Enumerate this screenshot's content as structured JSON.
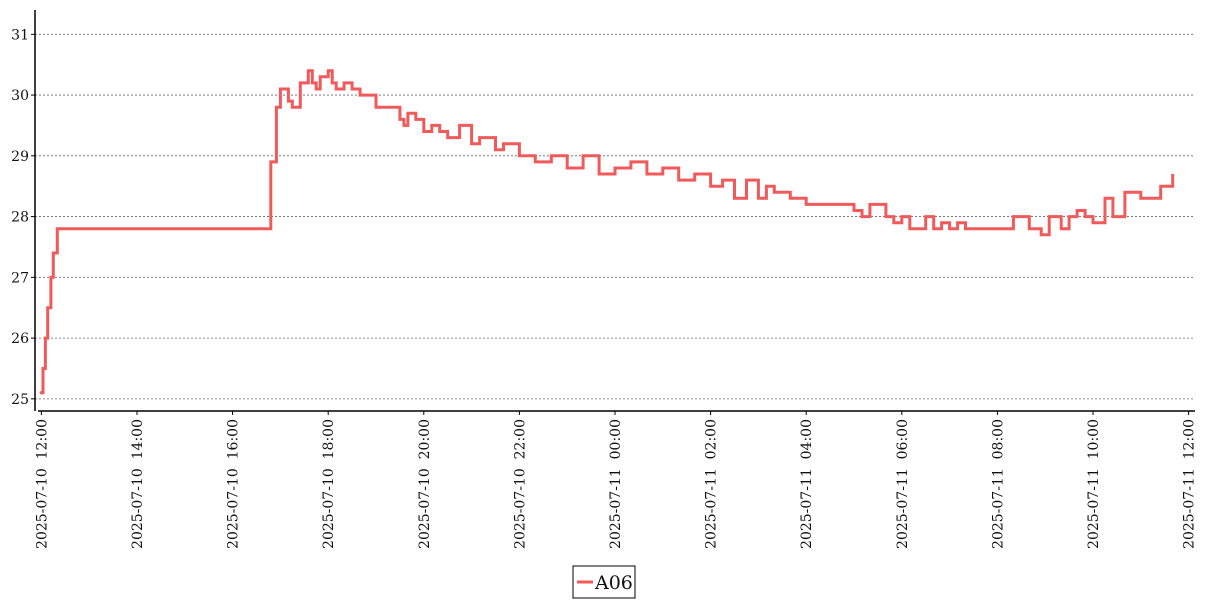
{
  "chart_data": {
    "type": "line",
    "title": "",
    "xlabel": "",
    "ylabel": "",
    "grid": "horizontal dotted",
    "legend_placement": "bottom-center",
    "ylim": [
      24.8,
      31.4
    ],
    "xlim": [
      "2025-07-10 11:52",
      "2025-07-11 12:08"
    ],
    "y_ticks": [
      "25",
      "26",
      "27",
      "28",
      "29",
      "30",
      "31"
    ],
    "x_ticks": [
      "2025-07-10  12:00",
      "2025-07-10  14:00",
      "2025-07-10  16:00",
      "2025-07-10  18:00",
      "2025-07-10  20:00",
      "2025-07-10  22:00",
      "2025-07-11  00:00",
      "2025-07-11  02:00",
      "2025-07-11  04:00",
      "2025-07-11  06:00",
      "2025-07-11  08:00",
      "2025-07-11  10:00",
      "2025-07-11  12:00"
    ],
    "series": [
      {
        "name": "A06",
        "color": "#f05a5a",
        "x": [
          "2025-07-10 11:58",
          "2025-07-10 12:02",
          "2025-07-10 12:05",
          "2025-07-10 12:08",
          "2025-07-10 12:12",
          "2025-07-10 12:15",
          "2025-07-10 12:20",
          "2025-07-10 12:25",
          "2025-07-10 12:30",
          "2025-07-10 16:45",
          "2025-07-10 16:48",
          "2025-07-10 16:55",
          "2025-07-10 17:00",
          "2025-07-10 17:05",
          "2025-07-10 17:10",
          "2025-07-10 17:15",
          "2025-07-10 17:25",
          "2025-07-10 17:35",
          "2025-07-10 17:40",
          "2025-07-10 17:45",
          "2025-07-10 17:50",
          "2025-07-10 18:00",
          "2025-07-10 18:05",
          "2025-07-10 18:10",
          "2025-07-10 18:20",
          "2025-07-10 18:30",
          "2025-07-10 18:40",
          "2025-07-10 19:00",
          "2025-07-10 19:30",
          "2025-07-10 19:35",
          "2025-07-10 19:40",
          "2025-07-10 19:50",
          "2025-07-10 20:00",
          "2025-07-10 20:10",
          "2025-07-10 20:20",
          "2025-07-10 20:30",
          "2025-07-10 20:45",
          "2025-07-10 21:00",
          "2025-07-10 21:10",
          "2025-07-10 21:30",
          "2025-07-10 21:40",
          "2025-07-10 22:00",
          "2025-07-10 22:20",
          "2025-07-10 22:40",
          "2025-07-10 23:00",
          "2025-07-10 23:20",
          "2025-07-10 23:40",
          "2025-07-11 00:00",
          "2025-07-11 00:20",
          "2025-07-11 00:40",
          "2025-07-11 01:00",
          "2025-07-11 01:20",
          "2025-07-11 01:40",
          "2025-07-11 02:00",
          "2025-07-11 02:15",
          "2025-07-11 02:30",
          "2025-07-11 02:45",
          "2025-07-11 03:00",
          "2025-07-11 03:10",
          "2025-07-11 03:20",
          "2025-07-11 03:40",
          "2025-07-11 04:00",
          "2025-07-11 04:30",
          "2025-07-11 05:00",
          "2025-07-11 05:10",
          "2025-07-11 05:20",
          "2025-07-11 05:40",
          "2025-07-11 05:50",
          "2025-07-11 06:00",
          "2025-07-11 06:10",
          "2025-07-11 06:30",
          "2025-07-11 06:40",
          "2025-07-11 06:50",
          "2025-07-11 07:00",
          "2025-07-11 07:10",
          "2025-07-11 07:20",
          "2025-07-11 07:40",
          "2025-07-11 08:00",
          "2025-07-11 08:20",
          "2025-07-11 08:40",
          "2025-07-11 08:55",
          "2025-07-11 09:05",
          "2025-07-11 09:20",
          "2025-07-11 09:30",
          "2025-07-11 09:40",
          "2025-07-11 09:50",
          "2025-07-11 10:00",
          "2025-07-11 10:15",
          "2025-07-11 10:25",
          "2025-07-11 10:40",
          "2025-07-11 11:00",
          "2025-07-11 11:25",
          "2025-07-11 11:30",
          "2025-07-11 11:40"
        ],
        "y": [
          25.1,
          25.5,
          26.0,
          26.5,
          27.0,
          27.4,
          27.8,
          27.8,
          27.8,
          27.8,
          28.9,
          29.8,
          30.1,
          30.1,
          29.9,
          29.8,
          30.2,
          30.4,
          30.2,
          30.1,
          30.3,
          30.4,
          30.2,
          30.1,
          30.2,
          30.1,
          30.0,
          29.8,
          29.6,
          29.5,
          29.7,
          29.6,
          29.4,
          29.5,
          29.4,
          29.3,
          29.5,
          29.2,
          29.3,
          29.1,
          29.2,
          29.0,
          28.9,
          29.0,
          28.8,
          29.0,
          28.7,
          28.8,
          28.9,
          28.7,
          28.8,
          28.6,
          28.7,
          28.5,
          28.6,
          28.3,
          28.6,
          28.3,
          28.5,
          28.4,
          28.3,
          28.2,
          28.2,
          28.1,
          28.0,
          28.2,
          28.0,
          27.9,
          28.0,
          27.8,
          28.0,
          27.8,
          27.9,
          27.8,
          27.9,
          27.8,
          27.8,
          27.8,
          28.0,
          27.8,
          27.7,
          28.0,
          27.8,
          28.0,
          28.1,
          28.0,
          27.9,
          28.3,
          28.0,
          28.4,
          28.3,
          28.5,
          28.5,
          28.7
        ]
      }
    ]
  }
}
